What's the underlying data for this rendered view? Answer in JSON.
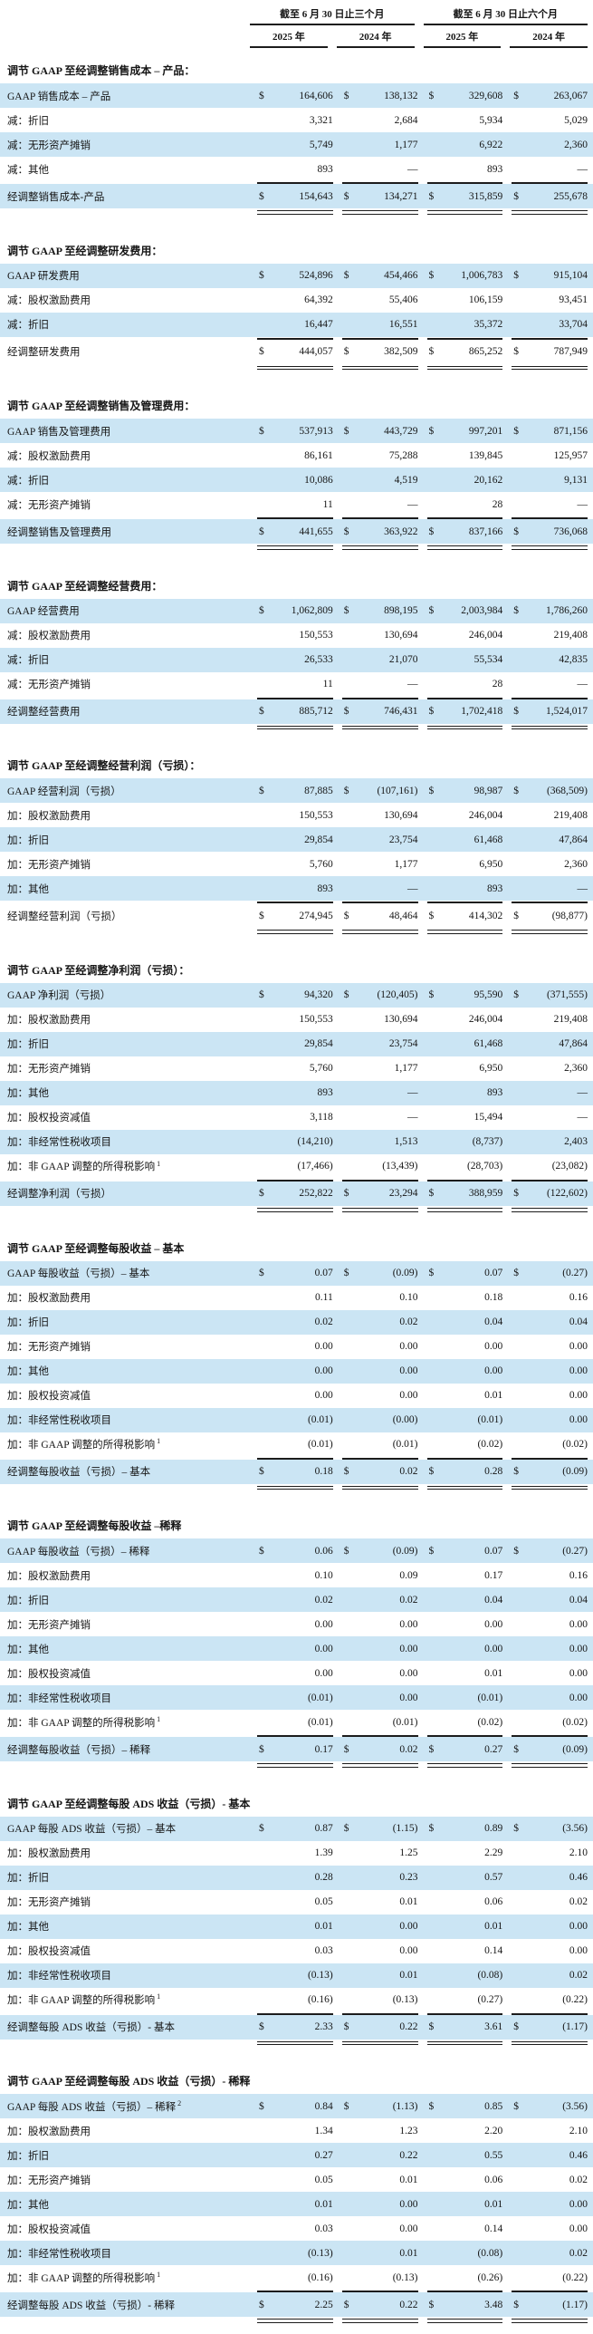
{
  "currency_symbol": "$",
  "colors": {
    "row_highlight": "#cbe5f4",
    "rule": "#1c1c1c",
    "text": "#151515"
  },
  "header": {
    "period_groups": [
      "截至 6 月 30 日止三个月",
      "截至 6 月 30 日止六个月"
    ],
    "year_columns": [
      "2025 年",
      "2024 年",
      "2025 年",
      "2024 年"
    ]
  },
  "sections": [
    {
      "title": "调节 GAAP 至经调整销售成本 – 产品：",
      "rows": [
        {
          "label": "GAAP 销售成本 – 产品",
          "dollar": true,
          "highlight": true,
          "total": false,
          "values": [
            "164,606",
            "138,132",
            "329,608",
            "263,067"
          ]
        },
        {
          "label": "减：折旧",
          "dollar": false,
          "highlight": false,
          "total": false,
          "values": [
            "3,321",
            "2,684",
            "5,934",
            "5,029"
          ]
        },
        {
          "label": "减：无形资产摊销",
          "dollar": false,
          "highlight": true,
          "total": false,
          "values": [
            "5,749",
            "1,177",
            "6,922",
            "2,360"
          ]
        },
        {
          "label": "减：其他",
          "dollar": false,
          "highlight": false,
          "total": false,
          "values": [
            "893",
            "—",
            "893",
            "—"
          ]
        },
        {
          "label": "经调整销售成本-产品",
          "dollar": true,
          "highlight": true,
          "total": true,
          "values": [
            "154,643",
            "134,271",
            "315,859",
            "255,678"
          ]
        }
      ]
    },
    {
      "title": "调节 GAAP 至经调整研发费用：",
      "rows": [
        {
          "label": "GAAP 研发费用",
          "dollar": true,
          "highlight": true,
          "total": false,
          "values": [
            "524,896",
            "454,466",
            "1,006,783",
            "915,104"
          ]
        },
        {
          "label": "减：股权激励费用",
          "dollar": false,
          "highlight": false,
          "total": false,
          "values": [
            "64,392",
            "55,406",
            "106,159",
            "93,451"
          ]
        },
        {
          "label": "减：折旧",
          "dollar": false,
          "highlight": true,
          "total": false,
          "values": [
            "16,447",
            "16,551",
            "35,372",
            "33,704"
          ]
        },
        {
          "label": "经调整研发费用",
          "dollar": true,
          "highlight": false,
          "total": true,
          "values": [
            "444,057",
            "382,509",
            "865,252",
            "787,949"
          ]
        }
      ]
    },
    {
      "title": "调节 GAAP 至经调整销售及管理费用：",
      "rows": [
        {
          "label": "GAAP 销售及管理费用",
          "dollar": true,
          "highlight": true,
          "total": false,
          "values": [
            "537,913",
            "443,729",
            "997,201",
            "871,156"
          ]
        },
        {
          "label": "减：股权激励费用",
          "dollar": false,
          "highlight": false,
          "total": false,
          "values": [
            "86,161",
            "75,288",
            "139,845",
            "125,957"
          ]
        },
        {
          "label": "减：折旧",
          "dollar": false,
          "highlight": true,
          "total": false,
          "values": [
            "10,086",
            "4,519",
            "20,162",
            "9,131"
          ]
        },
        {
          "label": "减：无形资产摊销",
          "dollar": false,
          "highlight": false,
          "total": false,
          "values": [
            "11",
            "—",
            "28",
            "—"
          ]
        },
        {
          "label": "经调整销售及管理费用",
          "dollar": true,
          "highlight": true,
          "total": true,
          "values": [
            "441,655",
            "363,922",
            "837,166",
            "736,068"
          ]
        }
      ]
    },
    {
      "title": "调节 GAAP 至经调整经营费用：",
      "rows": [
        {
          "label": "GAAP 经营费用",
          "dollar": true,
          "highlight": true,
          "total": false,
          "values": [
            "1,062,809",
            "898,195",
            "2,003,984",
            "1,786,260"
          ]
        },
        {
          "label": "减：股权激励费用",
          "dollar": false,
          "highlight": false,
          "total": false,
          "values": [
            "150,553",
            "130,694",
            "246,004",
            "219,408"
          ]
        },
        {
          "label": "减：折旧",
          "dollar": false,
          "highlight": true,
          "total": false,
          "values": [
            "26,533",
            "21,070",
            "55,534",
            "42,835"
          ]
        },
        {
          "label": "减：无形资产摊销",
          "dollar": false,
          "highlight": false,
          "total": false,
          "values": [
            "11",
            "—",
            "28",
            "—"
          ]
        },
        {
          "label": "经调整经营费用",
          "dollar": true,
          "highlight": true,
          "total": true,
          "values": [
            "885,712",
            "746,431",
            "1,702,418",
            "1,524,017"
          ]
        }
      ]
    },
    {
      "title": "调节 GAAP 至经调整经营利润（亏损）：",
      "rows": [
        {
          "label": "GAAP 经营利润（亏损）",
          "dollar": true,
          "highlight": true,
          "total": false,
          "values": [
            "87,885",
            "(107,161)",
            "98,987",
            "(368,509)"
          ]
        },
        {
          "label": "加：股权激励费用",
          "dollar": false,
          "highlight": false,
          "total": false,
          "values": [
            "150,553",
            "130,694",
            "246,004",
            "219,408"
          ]
        },
        {
          "label": "加：折旧",
          "dollar": false,
          "highlight": true,
          "total": false,
          "values": [
            "29,854",
            "23,754",
            "61,468",
            "47,864"
          ]
        },
        {
          "label": "加：无形资产摊销",
          "dollar": false,
          "highlight": false,
          "total": false,
          "values": [
            "5,760",
            "1,177",
            "6,950",
            "2,360"
          ]
        },
        {
          "label": "加：其他",
          "dollar": false,
          "highlight": true,
          "total": false,
          "values": [
            "893",
            "—",
            "893",
            "—"
          ]
        },
        {
          "label": "经调整经营利润（亏损）",
          "dollar": true,
          "highlight": false,
          "total": true,
          "values": [
            "274,945",
            "48,464",
            "414,302",
            "(98,877)"
          ]
        }
      ]
    },
    {
      "title": "调节 GAAP 至经调整净利润（亏损）：",
      "rows": [
        {
          "label": "GAAP 净利润（亏损）",
          "dollar": true,
          "highlight": true,
          "total": false,
          "values": [
            "94,320",
            "(120,405)",
            "95,590",
            "(371,555)"
          ]
        },
        {
          "label": "加：股权激励费用",
          "dollar": false,
          "highlight": false,
          "total": false,
          "values": [
            "150,553",
            "130,694",
            "246,004",
            "219,408"
          ]
        },
        {
          "label": "加：折旧",
          "dollar": false,
          "highlight": true,
          "total": false,
          "values": [
            "29,854",
            "23,754",
            "61,468",
            "47,864"
          ]
        },
        {
          "label": "加：无形资产摊销",
          "dollar": false,
          "highlight": false,
          "total": false,
          "values": [
            "5,760",
            "1,177",
            "6,950",
            "2,360"
          ]
        },
        {
          "label": "加：其他",
          "dollar": false,
          "highlight": true,
          "total": false,
          "values": [
            "893",
            "—",
            "893",
            "—"
          ]
        },
        {
          "label": "加：股权投资减值",
          "dollar": false,
          "highlight": false,
          "total": false,
          "values": [
            "3,118",
            "—",
            "15,494",
            "—"
          ]
        },
        {
          "label": "加：非经常性税收项目",
          "dollar": false,
          "highlight": true,
          "total": false,
          "values": [
            "(14,210)",
            "1,513",
            "(8,737)",
            "2,403"
          ]
        },
        {
          "label": "加：非 GAAP 调整的所得税影响",
          "sup": "1",
          "dollar": false,
          "highlight": false,
          "total": false,
          "values": [
            "(17,466)",
            "(13,439)",
            "(28,703)",
            "(23,082)"
          ]
        },
        {
          "label": "经调整净利润（亏损）",
          "dollar": true,
          "highlight": true,
          "total": true,
          "values": [
            "252,822",
            "23,294",
            "388,959",
            "(122,602)"
          ]
        }
      ]
    },
    {
      "title": "调节 GAAP 至经调整每股收益 – 基本",
      "rows": [
        {
          "label": "GAAP 每股收益（亏损）– 基本",
          "dollar": true,
          "highlight": true,
          "total": false,
          "values": [
            "0.07",
            "(0.09)",
            "0.07",
            "(0.27)"
          ]
        },
        {
          "label": "加：股权激励费用",
          "dollar": false,
          "highlight": false,
          "total": false,
          "values": [
            "0.11",
            "0.10",
            "0.18",
            "0.16"
          ]
        },
        {
          "label": "加：折旧",
          "dollar": false,
          "highlight": true,
          "total": false,
          "values": [
            "0.02",
            "0.02",
            "0.04",
            "0.04"
          ]
        },
        {
          "label": "加：无形资产摊销",
          "dollar": false,
          "highlight": false,
          "total": false,
          "values": [
            "0.00",
            "0.00",
            "0.00",
            "0.00"
          ]
        },
        {
          "label": "加：其他",
          "dollar": false,
          "highlight": true,
          "total": false,
          "values": [
            "0.00",
            "0.00",
            "0.00",
            "0.00"
          ]
        },
        {
          "label": "加：股权投资减值",
          "dollar": false,
          "highlight": false,
          "total": false,
          "values": [
            "0.00",
            "0.00",
            "0.01",
            "0.00"
          ]
        },
        {
          "label": "加：非经常性税收项目",
          "dollar": false,
          "highlight": true,
          "total": false,
          "values": [
            "(0.01)",
            "(0.00)",
            "(0.01)",
            "0.00"
          ]
        },
        {
          "label": "加：非 GAAP 调整的所得税影响",
          "sup": "1",
          "dollar": false,
          "highlight": false,
          "total": false,
          "values": [
            "(0.01)",
            "(0.01)",
            "(0.02)",
            "(0.02)"
          ]
        },
        {
          "label": "经调整每股收益（亏损）– 基本",
          "dollar": true,
          "highlight": true,
          "total": true,
          "values": [
            "0.18",
            "0.02",
            "0.28",
            "(0.09)"
          ]
        }
      ]
    },
    {
      "title": "调节 GAAP 至经调整每股收益 –稀释",
      "rows": [
        {
          "label": "GAAP 每股收益（亏损）– 稀释",
          "dollar": true,
          "highlight": true,
          "total": false,
          "values": [
            "0.06",
            "(0.09)",
            "0.07",
            "(0.27)"
          ]
        },
        {
          "label": "加：股权激励费用",
          "dollar": false,
          "highlight": false,
          "total": false,
          "values": [
            "0.10",
            "0.09",
            "0.17",
            "0.16"
          ]
        },
        {
          "label": "加：折旧",
          "dollar": false,
          "highlight": true,
          "total": false,
          "values": [
            "0.02",
            "0.02",
            "0.04",
            "0.04"
          ]
        },
        {
          "label": "加：无形资产摊销",
          "dollar": false,
          "highlight": false,
          "total": false,
          "values": [
            "0.00",
            "0.00",
            "0.00",
            "0.00"
          ]
        },
        {
          "label": "加：其他",
          "dollar": false,
          "highlight": true,
          "total": false,
          "values": [
            "0.00",
            "0.00",
            "0.00",
            "0.00"
          ]
        },
        {
          "label": "加：股权投资减值",
          "dollar": false,
          "highlight": false,
          "total": false,
          "values": [
            "0.00",
            "0.00",
            "0.01",
            "0.00"
          ]
        },
        {
          "label": "加：非经常性税收项目",
          "dollar": false,
          "highlight": true,
          "total": false,
          "values": [
            "(0.01)",
            "0.00",
            "(0.01)",
            "0.00"
          ]
        },
        {
          "label": "加：非 GAAP 调整的所得税影响",
          "sup": "1",
          "dollar": false,
          "highlight": false,
          "total": false,
          "values": [
            "(0.01)",
            "(0.01)",
            "(0.02)",
            "(0.02)"
          ]
        },
        {
          "label": "经调整每股收益（亏损）– 稀释",
          "dollar": true,
          "highlight": true,
          "total": true,
          "values": [
            "0.17",
            "0.02",
            "0.27",
            "(0.09)"
          ]
        }
      ]
    },
    {
      "title": "调节 GAAP 至经调整每股 ADS 收益（亏损）- 基本",
      "rows": [
        {
          "label": "GAAP 每股 ADS 收益（亏损）– 基本",
          "dollar": true,
          "highlight": true,
          "total": false,
          "values": [
            "0.87",
            "(1.15)",
            "0.89",
            "(3.56)"
          ]
        },
        {
          "label": "加：股权激励费用",
          "dollar": false,
          "highlight": false,
          "total": false,
          "values": [
            "1.39",
            "1.25",
            "2.29",
            "2.10"
          ]
        },
        {
          "label": "加：折旧",
          "dollar": false,
          "highlight": true,
          "total": false,
          "values": [
            "0.28",
            "0.23",
            "0.57",
            "0.46"
          ]
        },
        {
          "label": "加：无形资产摊销",
          "dollar": false,
          "highlight": false,
          "total": false,
          "values": [
            "0.05",
            "0.01",
            "0.06",
            "0.02"
          ]
        },
        {
          "label": "加：其他",
          "dollar": false,
          "highlight": true,
          "total": false,
          "values": [
            "0.01",
            "0.00",
            "0.01",
            "0.00"
          ]
        },
        {
          "label": "加：股权投资减值",
          "dollar": false,
          "highlight": false,
          "total": false,
          "values": [
            "0.03",
            "0.00",
            "0.14",
            "0.00"
          ]
        },
        {
          "label": "加：非经常性税收项目",
          "dollar": false,
          "highlight": true,
          "total": false,
          "values": [
            "(0.13)",
            "0.01",
            "(0.08)",
            "0.02"
          ]
        },
        {
          "label": "加：非 GAAP 调整的所得税影响",
          "sup": "1",
          "dollar": false,
          "highlight": false,
          "total": false,
          "values": [
            "(0.16)",
            "(0.13)",
            "(0.27)",
            "(0.22)"
          ]
        },
        {
          "label": "经调整每股 ADS 收益（亏损）- 基本",
          "dollar": true,
          "highlight": true,
          "total": true,
          "values": [
            "2.33",
            "0.22",
            "3.61",
            "(1.17)"
          ]
        }
      ]
    },
    {
      "title": "调节 GAAP 至经调整每股 ADS 收益（亏损）- 稀释",
      "rows": [
        {
          "label": "GAAP 每股 ADS 收益（亏损）– 稀释",
          "sup": "2",
          "dollar": true,
          "highlight": true,
          "total": false,
          "values": [
            "0.84",
            "(1.13)",
            "0.85",
            "(3.56)"
          ]
        },
        {
          "label": "加：股权激励费用",
          "dollar": false,
          "highlight": false,
          "total": false,
          "values": [
            "1.34",
            "1.23",
            "2.20",
            "2.10"
          ]
        },
        {
          "label": "加：折旧",
          "dollar": false,
          "highlight": true,
          "total": false,
          "values": [
            "0.27",
            "0.22",
            "0.55",
            "0.46"
          ]
        },
        {
          "label": "加：无形资产摊销",
          "dollar": false,
          "highlight": false,
          "total": false,
          "values": [
            "0.05",
            "0.01",
            "0.06",
            "0.02"
          ]
        },
        {
          "label": "加：其他",
          "dollar": false,
          "highlight": true,
          "total": false,
          "values": [
            "0.01",
            "0.00",
            "0.01",
            "0.00"
          ]
        },
        {
          "label": "加：股权投资减值",
          "dollar": false,
          "highlight": false,
          "total": false,
          "values": [
            "0.03",
            "0.00",
            "0.14",
            "0.00"
          ]
        },
        {
          "label": "加：非经常性税收项目",
          "dollar": false,
          "highlight": true,
          "total": false,
          "values": [
            "(0.13)",
            "0.01",
            "(0.08)",
            "0.02"
          ]
        },
        {
          "label": "加：非 GAAP 调整的所得税影响",
          "sup": "1",
          "dollar": false,
          "highlight": false,
          "total": false,
          "values": [
            "(0.16)",
            "(0.13)",
            "(0.26)",
            "(0.22)"
          ]
        },
        {
          "label": "经调整每股 ADS 收益（亏损）- 稀释",
          "dollar": true,
          "highlight": true,
          "total": true,
          "values": [
            "2.25",
            "0.22",
            "3.48",
            "(1.17)"
          ]
        }
      ]
    }
  ]
}
